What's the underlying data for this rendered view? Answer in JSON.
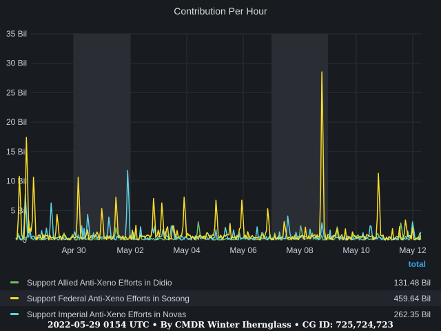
{
  "chart_data": {
    "type": "line",
    "title": "Contribution Per Hour",
    "y_unit": "Bil",
    "ylim": [
      0,
      35
    ],
    "yticks": [
      "0",
      "5 Bil",
      "10 Bil",
      "15 Bil",
      "20 Bil",
      "25 Bil",
      "30 Bil",
      "35 Bil"
    ],
    "x_range_days": [
      "2022-04-28",
      "2022-05-12"
    ],
    "xticks": [
      "Apr 30",
      "May 02",
      "May 04",
      "May 06",
      "May 08",
      "May 10",
      "May 12"
    ],
    "weekend_bands": [
      [
        "2022-04-30",
        "2022-05-02"
      ],
      [
        "2022-05-07",
        "2022-05-09"
      ]
    ],
    "grid": true,
    "legend_placement": "bottom",
    "series": [
      {
        "name": "Support Allied Anti-Xeno Efforts in Didio",
        "color": "#73bf69",
        "total": "131.48 Bil",
        "peaks": [
          [
            "2022-04-28T10:00",
            3.5
          ],
          [
            "2022-05-01T12:00",
            2.2
          ],
          [
            "2022-05-04T10:00",
            3.2
          ],
          [
            "2022-05-08T01:00",
            2.5
          ],
          [
            "2022-05-09T08:00",
            2.3
          ],
          [
            "2022-05-11T14:00",
            3.0
          ],
          [
            "2022-05-12T00:00",
            3.2
          ]
        ]
      },
      {
        "name": "Support Federal Anti-Xeno Efforts in Sosong",
        "color": "#fade2a",
        "total": "459.64 Bil",
        "peaks": [
          [
            "2022-04-28T02:00",
            11.2
          ],
          [
            "2022-04-28T08:00",
            18.0
          ],
          [
            "2022-04-28T14:00",
            11.0
          ],
          [
            "2022-04-29T10:00",
            4.5
          ],
          [
            "2022-04-30T04:00",
            11.0
          ],
          [
            "2022-05-01T00:00",
            5.5
          ],
          [
            "2022-05-01T12:00",
            7.5
          ],
          [
            "2022-05-02T20:00",
            7.3
          ],
          [
            "2022-05-03T03:00",
            6.5
          ],
          [
            "2022-05-03T22:00",
            7.5
          ],
          [
            "2022-05-05T01:00",
            7.0
          ],
          [
            "2022-05-05T23:00",
            7.0
          ],
          [
            "2022-05-06T21:00",
            5.5
          ],
          [
            "2022-05-08T19:00",
            29.5
          ],
          [
            "2022-05-10T19:00",
            11.7
          ],
          [
            "2022-05-11T18:00",
            3.5
          ]
        ]
      },
      {
        "name": "Support Imperial Anti-Xeno Efforts in Novas",
        "color": "#5fd1e4",
        "total": "262.35 Bil",
        "peaks": [
          [
            "2022-04-28T07:00",
            8.0
          ],
          [
            "2022-04-29T05:00",
            6.5
          ],
          [
            "2022-04-30T12:00",
            4.5
          ],
          [
            "2022-05-01T06:00",
            4.0
          ],
          [
            "2022-05-01T22:00",
            12.2
          ],
          [
            "2022-05-03T12:00",
            2.5
          ],
          [
            "2022-05-05T09:00",
            2.2
          ],
          [
            "2022-05-07T14:00",
            4.2
          ],
          [
            "2022-05-08T19:00",
            3.0
          ],
          [
            "2022-05-10T12:00",
            2.5
          ],
          [
            "2022-05-12T00:00",
            3.0
          ]
        ]
      }
    ]
  },
  "legend": {
    "header": "total"
  },
  "footer": "2022-05-29 0154 UTC • By CMDR Winter Iherngl‌ass • CG ID: 725,724,723"
}
